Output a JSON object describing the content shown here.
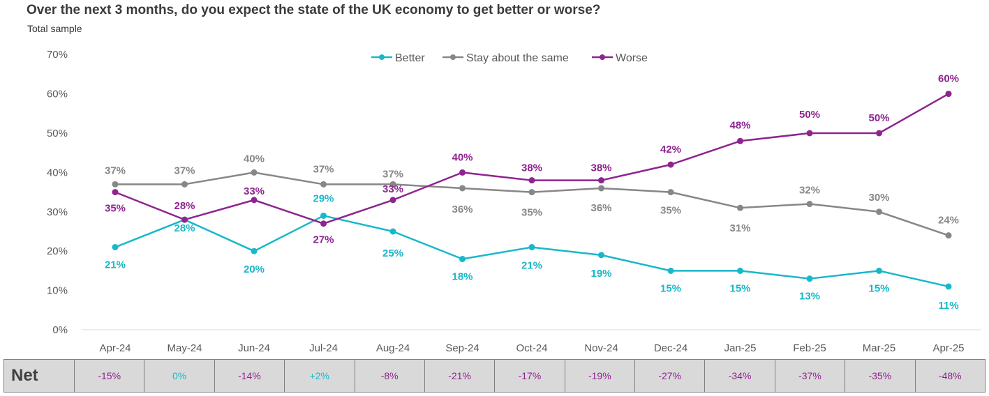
{
  "title": "Over the next 3 months, do you expect the state of the UK economy to get better or worse?",
  "subtitle": "Total sample",
  "chart_data": {
    "type": "line",
    "categories": [
      "Apr-24",
      "May-24",
      "Jun-24",
      "Jul-24",
      "Aug-24",
      "Sep-24",
      "Oct-24",
      "Nov-24",
      "Dec-24",
      "Jan-25",
      "Feb-25",
      "Mar-25",
      "Apr-25"
    ],
    "y_ticks": [
      "0%",
      "10%",
      "20%",
      "30%",
      "40%",
      "50%",
      "60%",
      "70%"
    ],
    "ylim": [
      0,
      70
    ],
    "legend_position": "top-center",
    "series": [
      {
        "name": "Better",
        "color": "#17B8C9",
        "values": [
          21,
          28,
          20,
          29,
          25,
          18,
          21,
          19,
          15,
          15,
          13,
          15,
          11
        ],
        "labels": [
          "21%",
          "28%",
          "20%",
          "29%",
          "25%",
          "18%",
          "21%",
          "19%",
          "15%",
          "15%",
          "13%",
          "15%",
          "11%"
        ]
      },
      {
        "name": "Stay about the same",
        "color": "#878787",
        "values": [
          37,
          37,
          40,
          37,
          37,
          36,
          35,
          36,
          35,
          31,
          32,
          30,
          24
        ],
        "labels": [
          "37%",
          "37%",
          "40%",
          "37%",
          "37%",
          "36%",
          "35%",
          "36%",
          "35%",
          "31%",
          "32%",
          "30%",
          "24%"
        ]
      },
      {
        "name": "Worse",
        "color": "#8E248F",
        "values": [
          35,
          28,
          33,
          27,
          33,
          40,
          38,
          38,
          42,
          48,
          50,
          50,
          60
        ],
        "labels": [
          "35%",
          "28%",
          "33%",
          "27%",
          "33%",
          "40%",
          "38%",
          "38%",
          "42%",
          "48%",
          "50%",
          "50%",
          "60%"
        ]
      }
    ]
  },
  "net": {
    "label": "Net",
    "values": [
      "-15%",
      "0%",
      "-14%",
      "+2%",
      "-8%",
      "-21%",
      "-17%",
      "-19%",
      "-27%",
      "-34%",
      "-37%",
      "-35%",
      "-48%"
    ],
    "colors": [
      "#8E248F",
      "#17B8C9",
      "#8E248F",
      "#17B8C9",
      "#8E248F",
      "#8E248F",
      "#8E248F",
      "#8E248F",
      "#8E248F",
      "#8E248F",
      "#8E248F",
      "#8E248F",
      "#8E248F"
    ]
  }
}
